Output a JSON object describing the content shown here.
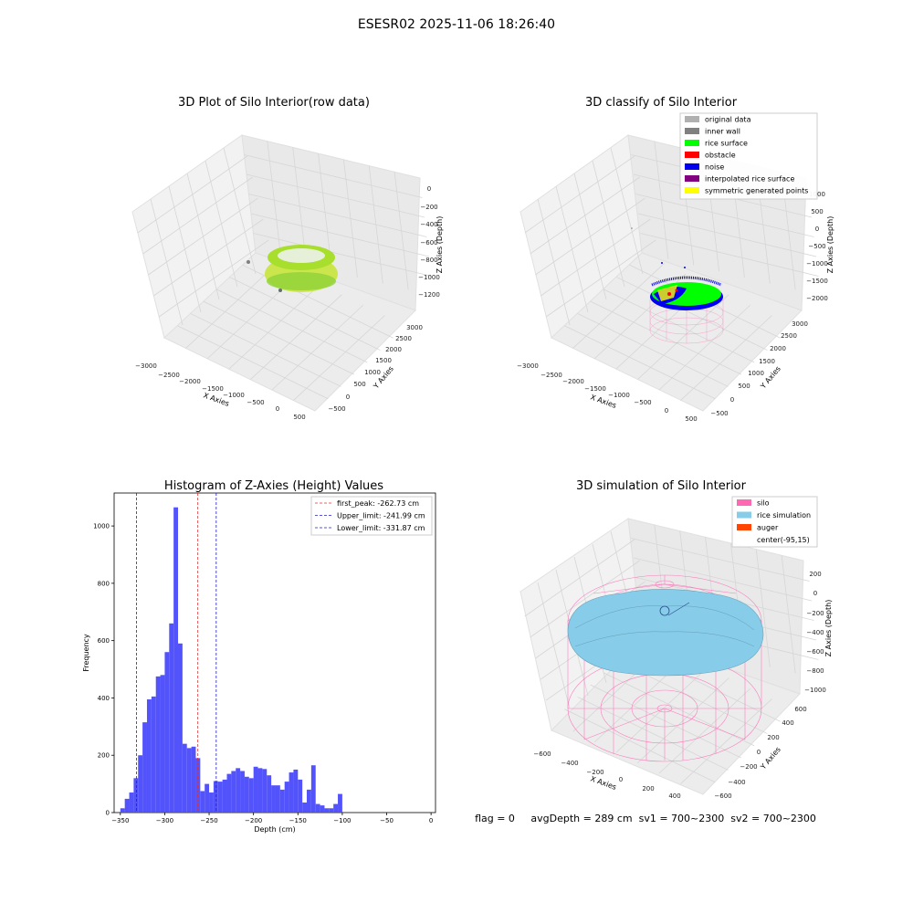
{
  "suptitle": "ESESR02 2025-11-06 18:26:40",
  "colors": {
    "histogram_bar": "#4a4afc",
    "first_peak_line": "#e03030",
    "limit_line": "#2020c0",
    "silo": "#ff69b4",
    "rice_simulation": "#87cdea",
    "auger": "#ff4500",
    "original": "#b0b0b0",
    "inner_wall": "#808080",
    "rice_surface": "#00ff00",
    "obstacle": "#ff0000",
    "noise": "#0000ee",
    "interpolated": "#800080",
    "symmetric": "#ffff00"
  },
  "chart_data": [
    {
      "id": "raw",
      "type": "scatter3d",
      "title": "3D Plot of Silo Interior(row data)",
      "xlabel": "X Axies",
      "ylabel": "Y Axies",
      "zlabel": "Z Axies (Depth)",
      "x_ticks": [
        "−3000",
        "−2500",
        "−2000",
        "−1500",
        "−1000",
        "−500",
        "0",
        "500"
      ],
      "y_ticks": [
        "−500",
        "0",
        "500",
        "1000",
        "1500",
        "2000",
        "2500",
        "3000"
      ],
      "z_ticks": [
        "0",
        "−200",
        "−400",
        "−600",
        "−800",
        "−1000",
        "−1200"
      ]
    },
    {
      "id": "classify",
      "type": "scatter3d",
      "title": "3D classify of Silo Interior",
      "xlabel": "X Axies",
      "ylabel": "Y Axies",
      "zlabel": "Z Axies (Depth)",
      "x_ticks": [
        "−3000",
        "−2500",
        "−2000",
        "−1500",
        "−1000",
        "−500",
        "0",
        "500"
      ],
      "y_ticks": [
        "−500",
        "0",
        "500",
        "1000",
        "1500",
        "2000",
        "2500",
        "3000"
      ],
      "z_ticks": [
        "1000",
        "500",
        "0",
        "−500",
        "−1000",
        "−1500",
        "−2000"
      ],
      "legend_position": "top-right",
      "legend": [
        {
          "label": "original data",
          "color": "#b0b0b0"
        },
        {
          "label": "inner wall",
          "color": "#808080"
        },
        {
          "label": "rice surface",
          "color": "#00ff00"
        },
        {
          "label": "obstacle",
          "color": "#ff0000"
        },
        {
          "label": "noise",
          "color": "#0000ee"
        },
        {
          "label": "interpolated rice surface",
          "color": "#800080"
        },
        {
          "label": "symmetric generated points",
          "color": "#ffff00"
        }
      ]
    },
    {
      "id": "histogram",
      "type": "bar",
      "title": "Histogram of Z-Axies (Height) Values",
      "xlabel": "Depth (cm)",
      "ylabel": "Frequency",
      "xlim": [
        -357,
        5
      ],
      "ylim": [
        0,
        1115
      ],
      "x_ticks": [
        -350,
        -300,
        -250,
        -200,
        -150,
        -100,
        -50,
        0
      ],
      "y_ticks": [
        0,
        200,
        400,
        600,
        800,
        1000
      ],
      "bin_start": -350,
      "bin_width": 5,
      "values": [
        15,
        48,
        70,
        120,
        200,
        315,
        395,
        405,
        475,
        480,
        560,
        660,
        1065,
        590,
        240,
        225,
        230,
        190,
        75,
        100,
        70,
        110,
        108,
        115,
        135,
        145,
        155,
        145,
        125,
        120,
        160,
        155,
        152,
        130,
        95,
        95,
        80,
        108,
        140,
        150,
        115,
        35,
        80,
        165,
        30,
        25,
        15,
        15,
        30,
        65
      ],
      "vlines": [
        {
          "x": -262.73,
          "label": "first_peak: -262.73 cm",
          "color": "#e03030"
        },
        {
          "x": -241.99,
          "label": "Upper_limit: -241.99 cm",
          "color": "#2020c0"
        },
        {
          "x": -331.87,
          "label": "Lower_limit: -331.87 cm",
          "color": "#2020c0"
        }
      ],
      "legend_position": "top-right"
    },
    {
      "id": "simulation",
      "type": "surface3d",
      "title": "3D simulation of Silo Interior",
      "xlabel": "X Axies",
      "ylabel": "Y Axies",
      "zlabel": "Z Axies (Depth)",
      "x_ticks": [
        "−600",
        "−400",
        "−200",
        "0",
        "200",
        "400"
      ],
      "y_ticks": [
        "−600",
        "−400",
        "−200",
        "0",
        "200",
        "400",
        "600"
      ],
      "z_ticks": [
        "200",
        "0",
        "−200",
        "−400",
        "−600",
        "−800",
        "−1000"
      ],
      "legend_position": "top-right",
      "legend": [
        {
          "label": "silo",
          "color": "#ff69b4"
        },
        {
          "label": "rice simulation",
          "color": "#87cdea"
        },
        {
          "label": "auger",
          "color": "#ff4500"
        },
        {
          "label": "center(-95,15)",
          "color": ""
        }
      ]
    }
  ],
  "status_line": "flag = 0     avgDepth = 289 cm  sv1 = 700~2300  sv2 = 700~2300"
}
